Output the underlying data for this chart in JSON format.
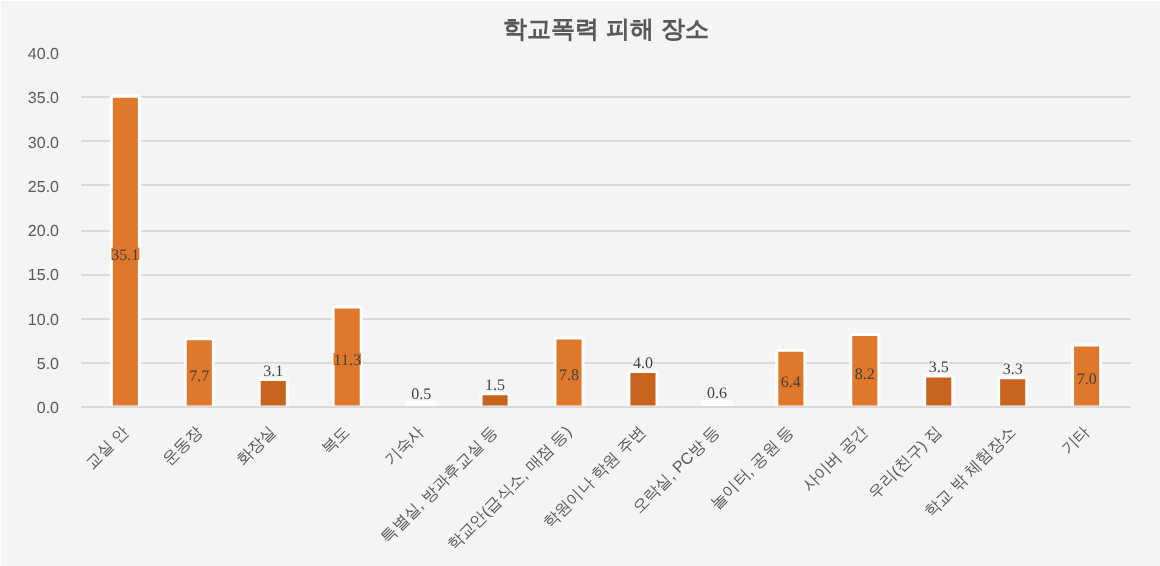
{
  "chart_data": {
    "type": "bar",
    "title": "학교폭력 피해 장소",
    "categories": [
      "교실 안",
      "운동장",
      "화장실",
      "복도",
      "기숙사",
      "특별실, 방과후교실 등",
      "학교안(급식소, 매점 등)",
      "학원이나 학원 주변",
      "오락실, PC방 등",
      "놀이터, 공원 등",
      "사이버 공간",
      "우리(친구) 집",
      "학교 밖 체험장소",
      "기타"
    ],
    "values": [
      35.1,
      7.7,
      3.1,
      11.3,
      0.5,
      1.5,
      7.8,
      4.0,
      0.6,
      6.4,
      8.2,
      3.5,
      3.3,
      7.0
    ],
    "value_labels": [
      "35.1",
      "7.7",
      "3.1",
      "11.3",
      "0.5",
      "1.5",
      "7.8",
      "4.0",
      "0.6",
      "6.4",
      "8.2",
      "3.5",
      "3.3",
      "7.0"
    ],
    "colors": [
      "#e0782c",
      "#e0782c",
      "#c9641f",
      "#e0782c",
      "#ffffff",
      "#c9641f",
      "#e0782c",
      "#c9641f",
      "#ffffff",
      "#e0782c",
      "#e0782c",
      "#c9641f",
      "#c9641f",
      "#e0782c"
    ],
    "ylim": [
      0,
      40
    ],
    "yticks": [
      {
        "value": 0,
        "label": "0.0"
      },
      {
        "value": 5,
        "label": "5.0"
      },
      {
        "value": 10,
        "label": "10.0"
      },
      {
        "value": 15,
        "label": "15.0"
      },
      {
        "value": 20,
        "label": "20.0"
      },
      {
        "value": 25,
        "label": "25.0"
      },
      {
        "value": 30,
        "label": "30.0"
      },
      {
        "value": 35,
        "label": "35.0"
      },
      {
        "value": 40,
        "label": "40.0"
      }
    ],
    "grid": "y"
  }
}
